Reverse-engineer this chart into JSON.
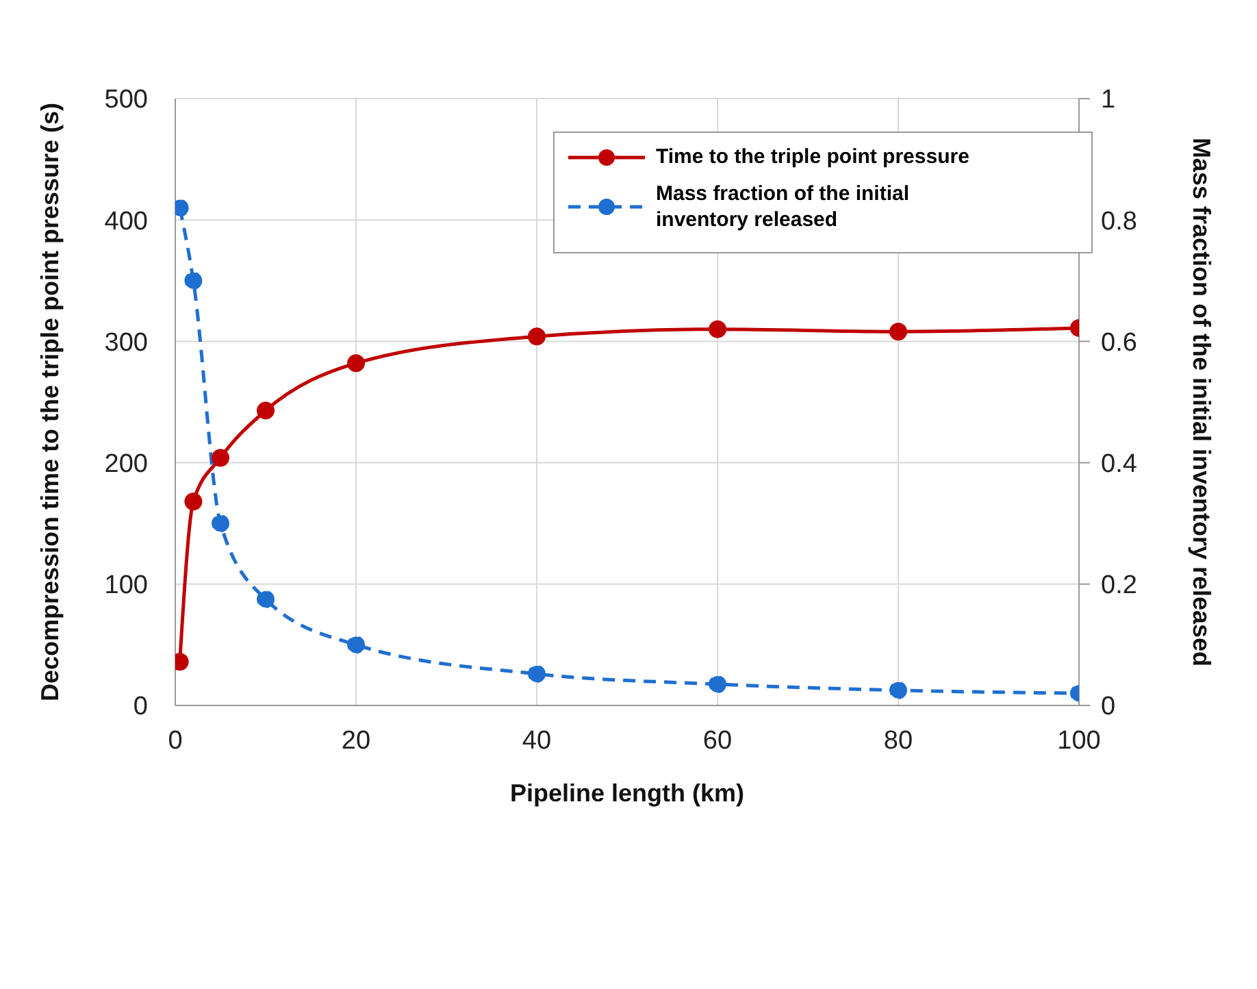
{
  "chart_data": {
    "type": "line",
    "xlabel": "Pipeline length (km)",
    "ylabel": "Decompression time to the triple point pressure (s)",
    "y2label": "Mass fraction of the initial inventory released",
    "x": [
      0.5,
      2,
      5,
      10,
      20,
      40,
      60,
      80,
      100
    ],
    "series": [
      {
        "name": "Time to the triple point pressure",
        "color": "#c00000",
        "values": [
          36,
          168,
          204,
          243,
          282,
          304,
          310,
          308,
          311
        ],
        "line_style": "solid"
      },
      {
        "name": "Mass fraction of the initial inventory released",
        "color": "#1f6fd0",
        "values": [
          0.82,
          0.7,
          0.3,
          0.175,
          0.1,
          0.052,
          0.035,
          0.025,
          0.02
        ],
        "axis": "y2",
        "line_style": "dashed"
      }
    ],
    "xlim": [
      0,
      100
    ],
    "xticks": [
      0,
      20,
      40,
      60,
      80,
      100
    ],
    "ylim": [
      0,
      500
    ],
    "yticks": [
      0,
      100,
      200,
      300,
      400,
      500
    ],
    "y2lim": [
      0,
      1
    ],
    "y2ticks": [
      0,
      0.2,
      0.4,
      0.6,
      0.8,
      1
    ],
    "grid": true,
    "legend": "top right",
    "marker": "circle"
  }
}
